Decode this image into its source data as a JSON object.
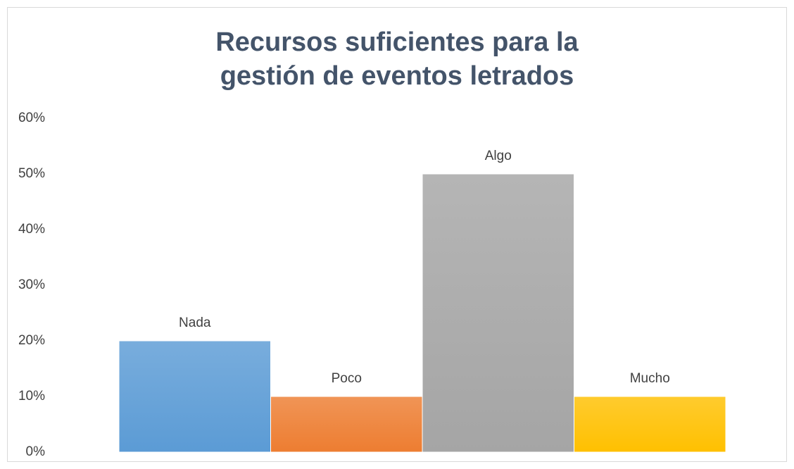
{
  "chart_data": {
    "type": "bar",
    "title": "Recursos suficientes para la gestión de eventos letrados",
    "categories": [
      "Nada",
      "Poco",
      "Algo",
      "Mucho"
    ],
    "values": [
      20,
      10,
      50,
      10
    ],
    "colors": [
      "#5b9bd5",
      "#ed7d31",
      "#a5a5a5",
      "#ffc000"
    ],
    "ylim": [
      0,
      60
    ],
    "yticks": [
      {
        "value": 0,
        "label": "0%"
      },
      {
        "value": 10,
        "label": "10%"
      },
      {
        "value": 20,
        "label": "20%"
      },
      {
        "value": 30,
        "label": "30%"
      },
      {
        "value": 40,
        "label": "40%"
      },
      {
        "value": 50,
        "label": "50%"
      },
      {
        "value": 60,
        "label": "60%"
      }
    ],
    "grid": false
  }
}
